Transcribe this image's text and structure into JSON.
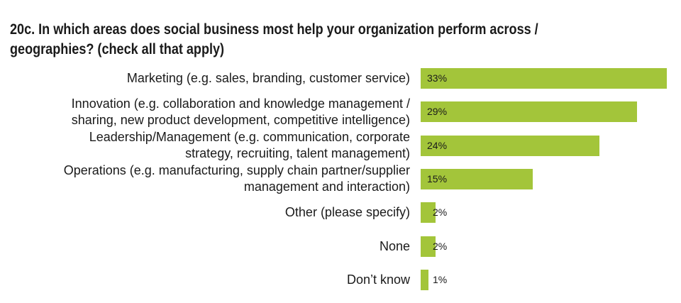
{
  "chart_data": {
    "type": "bar",
    "orientation": "horizontal",
    "title": "20c. In which areas does social business most help your organization perform across / geographies? (check all that apply)",
    "title_lines": [
      "20c. In which areas does social business most help your organization perform across /",
      "geographies? (check all that apply)"
    ],
    "categories": [
      [
        "Marketing (e.g. sales, branding, customer service)"
      ],
      [
        "Innovation (e.g. collaboration and knowledge management /",
        "sharing, new product development, competitive intelligence)"
      ],
      [
        "Leadership/Management (e.g. communication, corporate",
        "strategy, recruiting, talent management)"
      ],
      [
        "Operations (e.g. manufacturing, supply chain partner/supplier",
        "management and interaction)"
      ],
      [
        "Other (please specify)"
      ],
      [
        "None"
      ],
      [
        "Don’t know"
      ]
    ],
    "values": [
      33,
      29,
      24,
      15,
      2,
      2,
      1
    ],
    "value_labels": [
      "33%",
      "29%",
      "24%",
      "15%",
      "2%",
      "2%",
      "1%"
    ],
    "unit": "%",
    "bar_color": "#a3c53a",
    "xlim": [
      0,
      33
    ],
    "grid": false,
    "legend": "none"
  }
}
